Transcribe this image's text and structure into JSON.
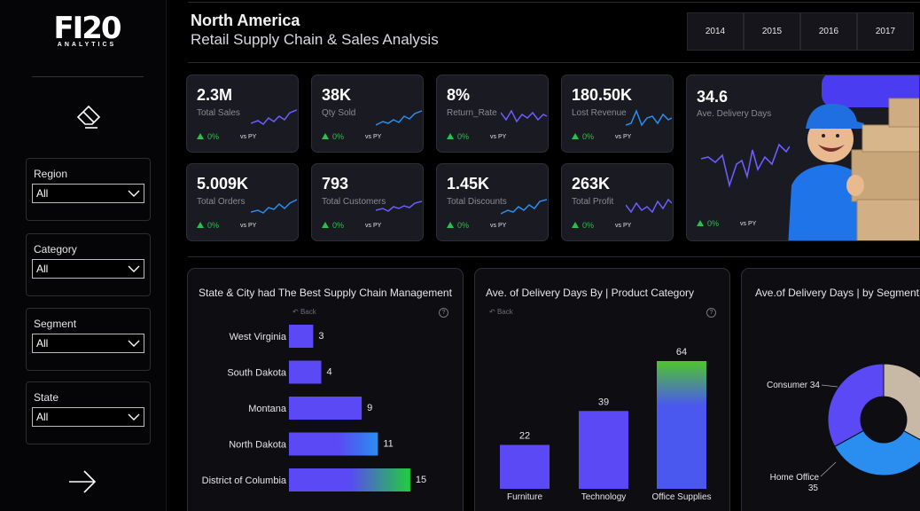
{
  "brand": {
    "logo_main": "FI20",
    "logo_sub": "ANALYTICS"
  },
  "filters": [
    {
      "label": "Region",
      "value": "All"
    },
    {
      "label": "Category",
      "value": "All"
    },
    {
      "label": "Segment",
      "value": "All"
    },
    {
      "label": "State",
      "value": "All"
    }
  ],
  "header": {
    "region_title": "North America",
    "subtitle": "Retail Supply Chain & Sales Analysis",
    "years": [
      "2014",
      "2015",
      "2016",
      "2017"
    ]
  },
  "colors": {
    "accent": "#5a49f5",
    "positive": "#2bc04b",
    "card_bg": "#1a1a22",
    "blue": "#2a8ef0"
  },
  "kpis": [
    {
      "value": "2.3M",
      "label": "Total Sales",
      "delta": "0%",
      "vs": "vs PY"
    },
    {
      "value": "38K",
      "label": "Qty Sold",
      "delta": "0%",
      "vs": "vs PY"
    },
    {
      "value": "8%",
      "label": "Return_Rate",
      "delta": "0%",
      "vs": "vs PY"
    },
    {
      "value": "180.50K",
      "label": "Lost Revenue",
      "delta": "0%",
      "vs": "vs PY"
    },
    {
      "value": "5.009K",
      "label": "Total Orders",
      "delta": "0%",
      "vs": "vs PY"
    },
    {
      "value": "793",
      "label": "Total Customers",
      "delta": "0%",
      "vs": "vs PY"
    },
    {
      "value": "1.45K",
      "label": "Total Discounts",
      "delta": "0%",
      "vs": "vs PY"
    },
    {
      "value": "263K",
      "label": "Total Profit",
      "delta": "0%",
      "vs": "vs PY"
    }
  ],
  "kpi_big": {
    "value": "34.6",
    "label": "Ave. Delivery Days",
    "delta": "0%",
    "vs": "vs PY"
  },
  "panels": {
    "states": {
      "title": "State & City had The Best Supply Chain Management",
      "back": "Back",
      "help": "?"
    },
    "category": {
      "title": "Ave. of Delivery Days By | Product Category",
      "back": "Back",
      "help": "?"
    },
    "segment": {
      "title": "Ave.of Delivery Days | by Segment"
    }
  },
  "chart_data": [
    {
      "type": "bar",
      "orientation": "horizontal",
      "title": "State & City had The Best Supply Chain Management",
      "categories": [
        "West Virginia",
        "South Dakota",
        "Montana",
        "North Dakota",
        "District of Columbia"
      ],
      "values": [
        3,
        4,
        9,
        11,
        15
      ],
      "xlim": [
        0,
        16
      ]
    },
    {
      "type": "bar",
      "title": "Ave. of Delivery Days By | Product Category",
      "categories": [
        "Furniture",
        "Technology",
        "Office Supplies"
      ],
      "values": [
        22,
        39,
        64
      ],
      "ylim": [
        0,
        70
      ]
    },
    {
      "type": "pie",
      "title": "Ave.of Delivery Days | by Segment",
      "slices": [
        {
          "label": "Consumer",
          "value": 34,
          "color": "#5a49f5"
        },
        {
          "label": "Home Office",
          "value": 35,
          "color": "#2a8ef0"
        },
        {
          "label": "",
          "value": 34,
          "color": "#c8b8a6"
        }
      ]
    }
  ]
}
